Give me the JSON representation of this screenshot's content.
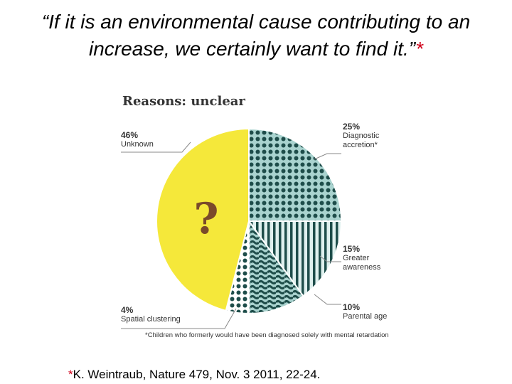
{
  "slide": {
    "quote": "“If it is an environmental cause contributing to an increase, we certainly want to find it.”",
    "quote_marker": "*",
    "citation_marker": "*",
    "citation": "K. Weintraub, Nature 479, Nov. 3 2011, 22-24."
  },
  "chart_data": {
    "type": "pie",
    "title": "Reasons: unclear",
    "slices": [
      {
        "label": "Diagnostic accretion*",
        "value": 25,
        "pct_label": "25%",
        "pattern": "dots",
        "color": "#1e4d4a",
        "bg": "#a9d3cf"
      },
      {
        "label": "Greater awareness",
        "value": 15,
        "pct_label": "15%",
        "pattern": "vertical-lines",
        "color": "#1e4d4a",
        "bg": "#dff0ee"
      },
      {
        "label": "Parental age",
        "value": 10,
        "pct_label": "10%",
        "pattern": "waves",
        "color": "#1e4d4a",
        "bg": "#a9d3cf"
      },
      {
        "label": "Spatial clustering",
        "value": 4,
        "pct_label": "4%",
        "pattern": "dots",
        "color": "#1e4d4a",
        "bg": "#ffffff"
      },
      {
        "label": "Unknown",
        "value": 46,
        "pct_label": "46%",
        "pattern": "solid",
        "color": "#f5e83a",
        "bg": "#f5e83a"
      }
    ],
    "center_mark": "?",
    "center_mark_color": "#7a4a2a",
    "footnote": "*Children who formerly would have been diagnosed solely with mental retardation"
  }
}
